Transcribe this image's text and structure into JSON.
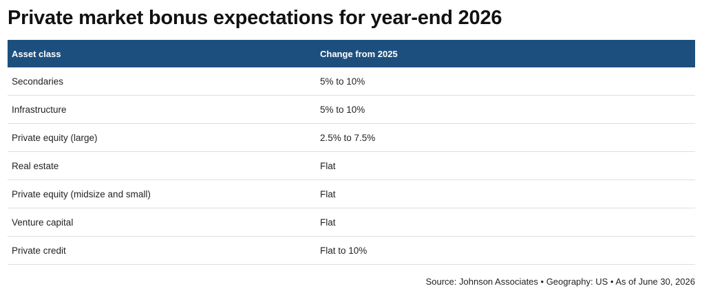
{
  "chart_data": {
    "type": "table",
    "title": "Private market bonus expectations for year-end 2026",
    "columns": [
      "Asset class",
      "Change from 2025"
    ],
    "rows": [
      [
        "Secondaries",
        "5% to 10%"
      ],
      [
        "Infrastructure",
        "5% to 10%"
      ],
      [
        "Private equity (large)",
        "2.5% to 7.5%"
      ],
      [
        "Real estate",
        "Flat"
      ],
      [
        "Private equity (midsize and small)",
        "Flat"
      ],
      [
        "Venture capital",
        "Flat"
      ],
      [
        "Private credit",
        "Flat to 10%"
      ]
    ],
    "source": "Source: Johnson Associates • Geography: US • As of June 30, 2026"
  },
  "colors": {
    "header_background": "#1d4f7e",
    "header_text": "#ffffff",
    "row_divider": "#dedede"
  }
}
